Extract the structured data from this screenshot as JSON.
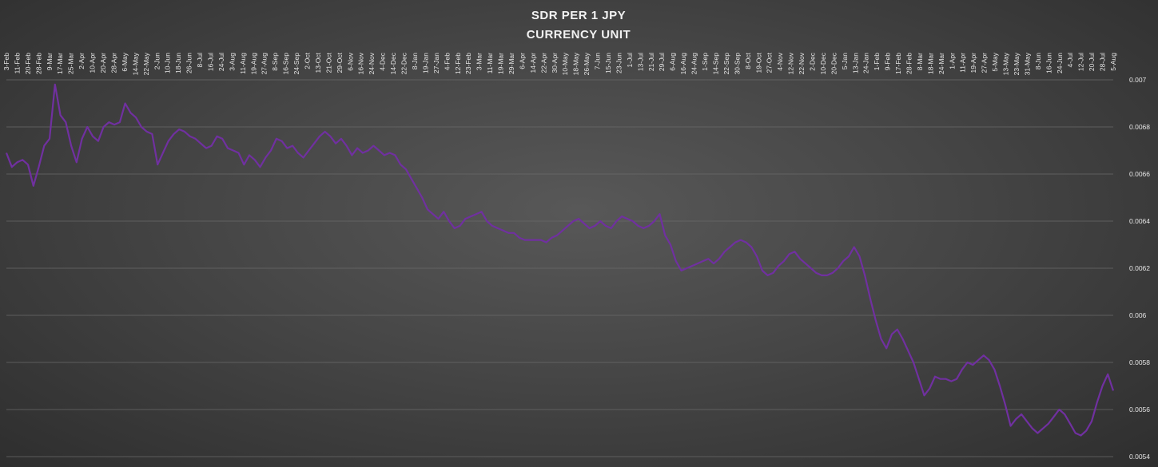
{
  "chart_data": {
    "type": "line",
    "title": "SDR PER 1 JPY",
    "subtitle": "CURRENCY UNIT",
    "xlabel": "",
    "ylabel": "",
    "ylim": [
      0.0054,
      0.007
    ],
    "y_ticks": [
      "0.0054",
      "0.0056",
      "0.0058",
      "0.006",
      "0.0062",
      "0.0064",
      "0.0066",
      "0.0068",
      "0.007"
    ],
    "grid": true,
    "x_tick_labels": [
      "3-Feb",
      "11-Feb",
      "20-Feb",
      "28-Feb",
      "9-Mar",
      "17-Mar",
      "25-Mar",
      "2-Apr",
      "10-Apr",
      "20-Apr",
      "28-Apr",
      "6-May",
      "14-May",
      "22-May",
      "2-Jun",
      "10-Jun",
      "18-Jun",
      "26-Jun",
      "8-Jul",
      "16-Jul",
      "24-Jul",
      "3-Aug",
      "11-Aug",
      "19-Aug",
      "27-Aug",
      "8-Sep",
      "16-Sep",
      "24-Sep",
      "2-Oct",
      "13-Oct",
      "21-Oct",
      "29-Oct",
      "6-Nov",
      "16-Nov",
      "24-Nov",
      "4-Dec",
      "14-Dec",
      "22-Dec",
      "8-Jan",
      "19-Jan",
      "27-Jan",
      "4-Feb",
      "12-Feb",
      "23-Feb",
      "3-Mar",
      "11-Mar",
      "19-Mar",
      "29-Mar",
      "6-Apr",
      "14-Apr",
      "22-Apr",
      "30-Apr",
      "10-May",
      "18-May",
      "26-May",
      "7-Jun",
      "15-Jun",
      "23-Jun",
      "1-Jul",
      "13-Jul",
      "21-Jul",
      "29-Jul",
      "6-Aug",
      "16-Aug",
      "24-Aug",
      "1-Sep",
      "14-Sep",
      "22-Sep",
      "30-Sep",
      "8-Oct",
      "19-Oct",
      "27-Oct",
      "4-Nov",
      "12-Nov",
      "22-Nov",
      "2-Dec",
      "10-Dec",
      "20-Dec",
      "5-Jan",
      "13-Jan",
      "24-Jan",
      "1-Feb",
      "9-Feb",
      "17-Feb",
      "28-Feb",
      "8-Mar",
      "18-Mar",
      "24-Mar",
      "1-Apr",
      "11-Apr",
      "19-Apr",
      "27-Apr",
      "5-May",
      "13-May",
      "23-May",
      "31-May",
      "8-Jun",
      "16-Jun",
      "24-Jun",
      "4-Jul",
      "12-Jul",
      "20-Jul",
      "28-Jul",
      "5-Aug"
    ],
    "series": [
      {
        "color": "#7030a0",
        "values": [
          0.00669,
          0.00663,
          0.00665,
          0.00666,
          0.00664,
          0.00655,
          0.00663,
          0.00672,
          0.00675,
          0.00698,
          0.00685,
          0.00682,
          0.00672,
          0.00665,
          0.00675,
          0.0068,
          0.00676,
          0.00674,
          0.0068,
          0.00682,
          0.00681,
          0.00682,
          0.0069,
          0.00686,
          0.00684,
          0.0068,
          0.00678,
          0.00677,
          0.00664,
          0.00669,
          0.00674,
          0.00677,
          0.00679,
          0.00678,
          0.00676,
          0.00675,
          0.00673,
          0.00671,
          0.00672,
          0.00676,
          0.00675,
          0.00671,
          0.0067,
          0.00669,
          0.00664,
          0.00668,
          0.00666,
          0.00663,
          0.00667,
          0.0067,
          0.00675,
          0.00674,
          0.00671,
          0.00672,
          0.00669,
          0.00667,
          0.0067,
          0.00673,
          0.00676,
          0.00678,
          0.00676,
          0.00673,
          0.00675,
          0.00672,
          0.00668,
          0.00671,
          0.00669,
          0.0067,
          0.00672,
          0.0067,
          0.00668,
          0.00669,
          0.00668,
          0.00664,
          0.00662,
          0.00658,
          0.00654,
          0.0065,
          0.00645,
          0.00643,
          0.00641,
          0.00644,
          0.0064,
          0.00637,
          0.00638,
          0.00641,
          0.00642,
          0.00643,
          0.00644,
          0.0064,
          0.00638,
          0.00637,
          0.00636,
          0.00635,
          0.00635,
          0.00633,
          0.00632,
          0.00632,
          0.00632,
          0.00632,
          0.00631,
          0.00633,
          0.00634,
          0.00636,
          0.00638,
          0.0064,
          0.00641,
          0.00639,
          0.00637,
          0.00638,
          0.0064,
          0.00638,
          0.00637,
          0.0064,
          0.00642,
          0.00641,
          0.0064,
          0.00638,
          0.00637,
          0.00638,
          0.0064,
          0.00643,
          0.00634,
          0.0063,
          0.00623,
          0.00619,
          0.0062,
          0.00621,
          0.00622,
          0.00623,
          0.00624,
          0.00622,
          0.00624,
          0.00627,
          0.00629,
          0.00631,
          0.00632,
          0.00631,
          0.00629,
          0.00625,
          0.00619,
          0.00617,
          0.00618,
          0.00621,
          0.00623,
          0.00626,
          0.00627,
          0.00624,
          0.00622,
          0.0062,
          0.00618,
          0.00617,
          0.00617,
          0.00618,
          0.0062,
          0.00623,
          0.00625,
          0.00629,
          0.00625,
          0.00617,
          0.00607,
          0.00598,
          0.0059,
          0.00586,
          0.00592,
          0.00594,
          0.0059,
          0.00585,
          0.0058,
          0.00573,
          0.00566,
          0.00569,
          0.00574,
          0.00573,
          0.00573,
          0.00572,
          0.00573,
          0.00577,
          0.0058,
          0.00579,
          0.00581,
          0.00583,
          0.00581,
          0.00577,
          0.0057,
          0.00562,
          0.00553,
          0.00556,
          0.00558,
          0.00555,
          0.00552,
          0.0055,
          0.00552,
          0.00554,
          0.00557,
          0.0056,
          0.00558,
          0.00554,
          0.0055,
          0.00549,
          0.00551,
          0.00555,
          0.00563,
          0.0057,
          0.00575,
          0.00568
        ]
      }
    ]
  }
}
